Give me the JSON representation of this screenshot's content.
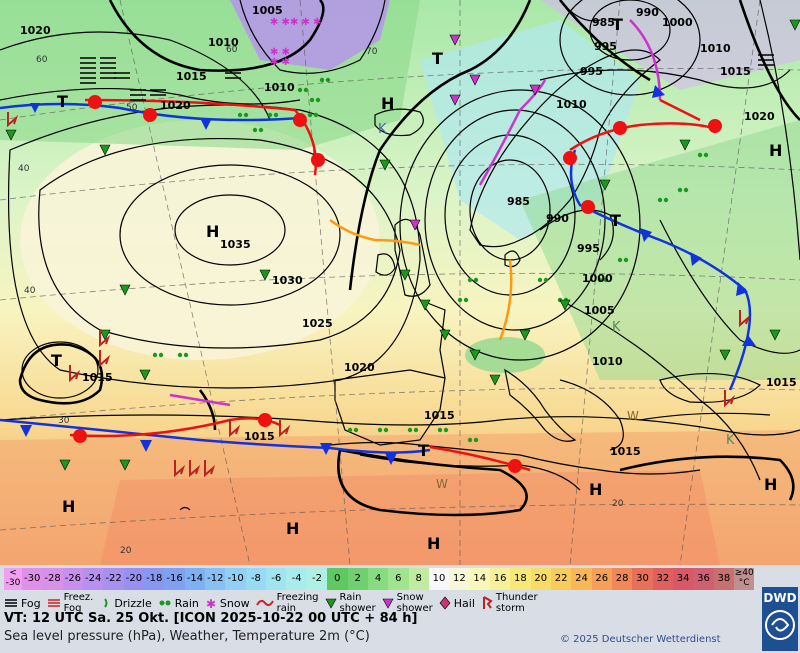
{
  "map": {
    "pressure_labels": [
      "1005",
      "1010",
      "1015",
      "1020",
      "1035",
      "1030",
      "1025",
      "1020",
      "1010",
      "985",
      "990",
      "995",
      "1000",
      "1005",
      "1010",
      "1015",
      "985",
      "990",
      "1000",
      "995",
      "1010",
      "1015",
      "1020",
      "1015",
      "1015",
      "1015",
      "1015",
      "1015",
      "1020",
      "1010"
    ],
    "centers": {
      "high": "H",
      "low": "T",
      "cold_pool": "K",
      "warm": "W"
    },
    "lat_labels": [
      "60",
      "50",
      "40",
      "40",
      "30",
      "20",
      "20",
      "60",
      "70"
    ]
  },
  "legend": {
    "scale": [
      {
        "label": "<\n-30",
        "color": "#f0a0f0"
      },
      {
        "label": "-30",
        "color": "#e090e8"
      },
      {
        "label": "-28",
        "color": "#d890e8"
      },
      {
        "label": "-26",
        "color": "#c890ec"
      },
      {
        "label": "-24",
        "color": "#b890f0"
      },
      {
        "label": "-22",
        "color": "#a890f0"
      },
      {
        "label": "-20",
        "color": "#9890f0"
      },
      {
        "label": "-18",
        "color": "#8898f0"
      },
      {
        "label": "-16",
        "color": "#80a0f0"
      },
      {
        "label": "-14",
        "color": "#80b0f4"
      },
      {
        "label": "-12",
        "color": "#88c0f4"
      },
      {
        "label": "-10",
        "color": "#90d0f4"
      },
      {
        "label": "-8",
        "color": "#98daf4"
      },
      {
        "label": "-6",
        "color": "#a0e4f0"
      },
      {
        "label": "-4",
        "color": "#a8ecec"
      },
      {
        "label": "-2",
        "color": "#b0f0e4"
      },
      {
        "label": "0",
        "color": "#60c860"
      },
      {
        "label": "2",
        "color": "#70d070"
      },
      {
        "label": "4",
        "color": "#88dc80"
      },
      {
        "label": "6",
        "color": "#a0e490"
      },
      {
        "label": "8",
        "color": "#c0eca0"
      },
      {
        "label": "10",
        "color": "#f8f8f8"
      },
      {
        "label": "12",
        "color": "#f8f8d8"
      },
      {
        "label": "14",
        "color": "#f8f8b8"
      },
      {
        "label": "16",
        "color": "#f8f098"
      },
      {
        "label": "18",
        "color": "#f8e878"
      },
      {
        "label": "20",
        "color": "#f8dc68"
      },
      {
        "label": "22",
        "color": "#f8cc58"
      },
      {
        "label": "24",
        "color": "#f8b858"
      },
      {
        "label": "26",
        "color": "#f8a058"
      },
      {
        "label": "28",
        "color": "#f08858"
      },
      {
        "label": "30",
        "color": "#e87058"
      },
      {
        "label": "32",
        "color": "#e06060"
      },
      {
        "label": "34",
        "color": "#d85868"
      },
      {
        "label": "36",
        "color": "#d06070"
      },
      {
        "label": "38",
        "color": "#c87070"
      },
      {
        "label": "≥40\n°C",
        "color": "#c09090"
      }
    ],
    "weather_items": [
      "Fog",
      "Freez.\nFog",
      "Drizzle",
      "Rain",
      "Snow",
      "Freezing\nrain",
      "Rain\nshower",
      "Snow\nshower",
      "Hail",
      "Thunder\nstorm"
    ],
    "valid_time": "VT: 12 UTC Sa.  25 Okt. [ICON 2025-10-22  00 UTC + 84 h]",
    "description": "Sea level pressure (hPa), Weather, Temperature 2m (°C)",
    "copyright": "© 2025 Deutscher Wetterdienst",
    "logo_text": "DWD",
    "colors": {
      "warm_front": "#ee1111",
      "cold_front": "#1133dd",
      "occlusion": "#cc33cc",
      "trough": "#ff9911"
    }
  }
}
